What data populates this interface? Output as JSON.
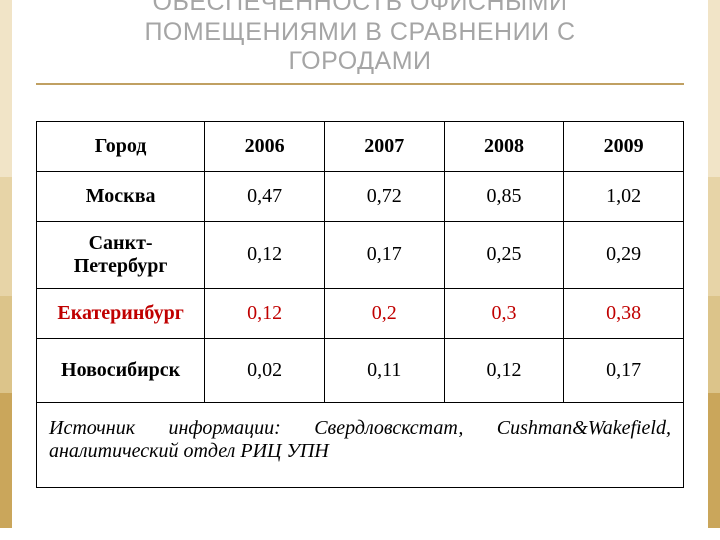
{
  "colors": {
    "title": "#a5a5a5",
    "hr": "#c0a062",
    "highlight_row_text": "#c00000",
    "stripe_left": [
      "#f1e4c7",
      "#e7d4a7",
      "#dcc48a",
      "#caa65b"
    ],
    "stripe_right": [
      "#f1e4c7",
      "#e7d4a7",
      "#dcc48a",
      "#caa65b"
    ]
  },
  "title_lines": [
    "ОБЕСПЕЧЕННОСТЬ ОФИСНЫМИ",
    "ПОМЕЩЕНИЯМИ В СРАВНЕНИИ С",
    "ГОРОДАМИ"
  ],
  "table": {
    "columns": [
      "Город",
      "2006",
      "2007",
      "2008",
      "2009"
    ],
    "rows": [
      {
        "city": "Москва",
        "values": [
          "0,47",
          "0,72",
          "0,85",
          "1,02"
        ],
        "highlight": false
      },
      {
        "city": "Санкт-Петербург",
        "values": [
          "0,12",
          "0,17",
          "0,25",
          "0,29"
        ],
        "highlight": false,
        "city_two_line": true
      },
      {
        "city": "Екатеринбург",
        "values": [
          "0,12",
          "0,2",
          "0,3",
          "0,38"
        ],
        "highlight": true
      },
      {
        "city": "Новосибирск",
        "values": [
          "0,02",
          "0,11",
          "0,12",
          "0,17"
        ],
        "highlight": false,
        "tall": true
      }
    ],
    "source": "Источник информации: Свердловскстат, Cushman&Wakefield, аналитический отдел РИЦ УПН"
  }
}
